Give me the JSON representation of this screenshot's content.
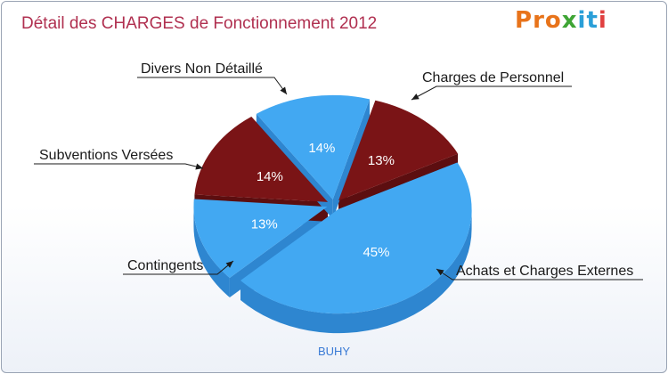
{
  "title": "Détail des CHARGES de Fonctionnement 2012",
  "logo": {
    "letters": [
      {
        "ch": "P",
        "color": "#e8731a"
      },
      {
        "ch": "r",
        "color": "#e8731a"
      },
      {
        "ch": "o",
        "color": "#e8731a"
      },
      {
        "ch": "x",
        "color": "#3fa535"
      },
      {
        "ch": "i",
        "color": "#2a9fd8"
      },
      {
        "ch": "t",
        "color": "#2a9fd8"
      },
      {
        "ch": "i",
        "color": "#e04040"
      }
    ]
  },
  "chart_data": {
    "type": "pie",
    "title": "Détail des CHARGES de Fonctionnement 2012",
    "footer": "BUHY",
    "slices": [
      {
        "label": "Charges de Personnel",
        "value": 13,
        "pct_label": "13%",
        "color": "#7a1416",
        "side_color": "#5c0e10"
      },
      {
        "label": "Achats et Charges Externes",
        "value": 45,
        "pct_label": "45%",
        "color": "#42a8f2",
        "side_color": "#2e86d0"
      },
      {
        "label": "Contingents",
        "value": 13,
        "pct_label": "13%",
        "color": "#42a8f2",
        "side_color": "#2e86d0"
      },
      {
        "label": "Subventions Versées",
        "value": 14,
        "pct_label": "14%",
        "color": "#7a1416",
        "side_color": "#5c0e10"
      },
      {
        "label": "Divers Non Détaillé",
        "value": 14,
        "pct_label": "14%",
        "color": "#42a8f2",
        "side_color": "#2e86d0"
      }
    ]
  }
}
